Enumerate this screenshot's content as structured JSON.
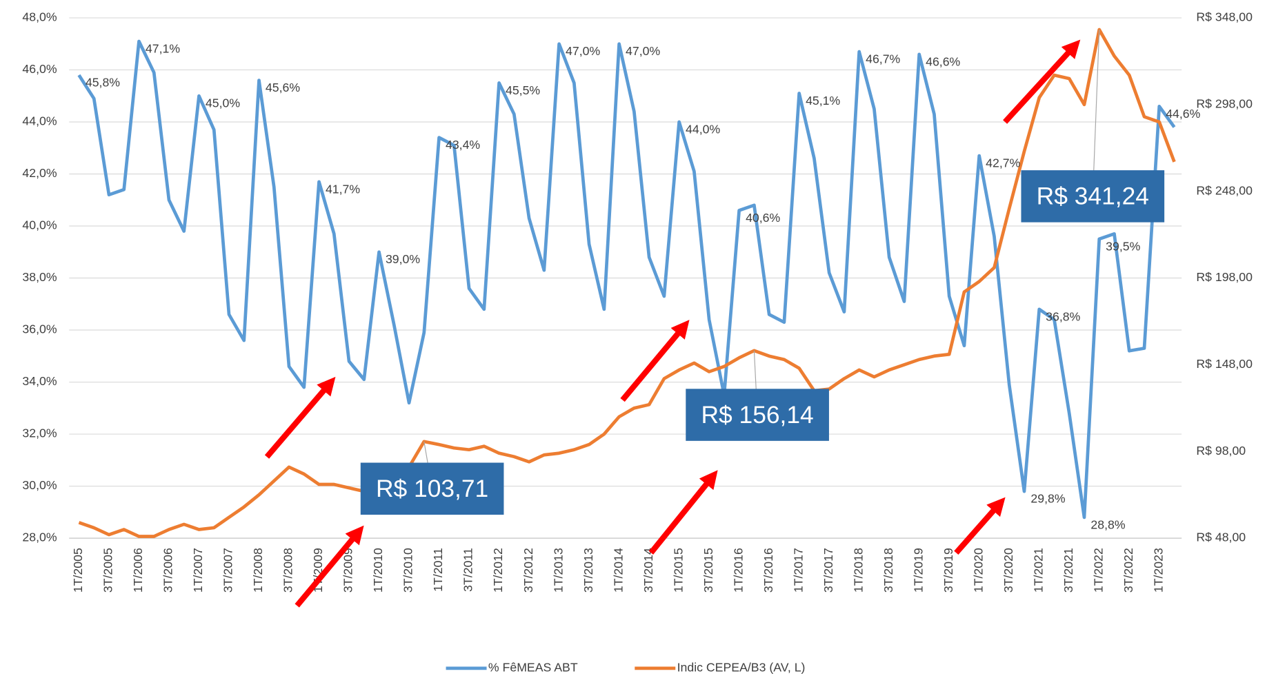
{
  "chart_data": {
    "type": "line",
    "categories": [
      "1T/2005",
      null,
      "3T/2005",
      null,
      "1T/2006",
      null,
      "3T/2006",
      null,
      "1T/2007",
      null,
      "3T/2007",
      null,
      "1T/2008",
      null,
      "3T/2008",
      null,
      "1T/2009",
      null,
      "3T/2009",
      null,
      "1T/2010",
      null,
      "3T/2010",
      null,
      "1T/2011",
      null,
      "3T/2011",
      null,
      "1T/2012",
      null,
      "3T/2012",
      null,
      "1T/2013",
      null,
      "3T/2013",
      null,
      "1T/2014",
      null,
      "3T/2014",
      null,
      "1T/2015",
      null,
      "3T/2015",
      null,
      "1T/2016",
      null,
      "3T/2016",
      null,
      "1T/2017",
      null,
      "3T/2017",
      null,
      "1T/2018",
      null,
      "3T/2018",
      null,
      "1T/2019",
      null,
      "3T/2019",
      null,
      "1T/2020",
      null,
      "3T/2020",
      null,
      "1T/2021",
      null,
      "3T/2021",
      null,
      "1T/2022",
      null,
      "3T/2022",
      null,
      "1T/2023",
      null
    ],
    "series": [
      {
        "name": "% FêMEAS ABT",
        "color": "#5b9bd5",
        "axis": "y",
        "values": [
          45.8,
          44.9,
          41.2,
          41.4,
          47.1,
          45.9,
          41.0,
          39.8,
          45.0,
          43.7,
          36.6,
          35.6,
          45.6,
          41.5,
          34.6,
          33.8,
          41.7,
          39.7,
          34.8,
          34.1,
          39.0,
          36.2,
          33.2,
          35.9,
          43.4,
          43.1,
          37.6,
          36.8,
          45.5,
          44.3,
          40.3,
          38.3,
          47.0,
          45.5,
          39.3,
          36.8,
          47.0,
          44.4,
          38.8,
          37.3,
          44.0,
          42.1,
          36.4,
          33.5,
          40.6,
          40.8,
          36.6,
          36.3,
          45.1,
          42.6,
          38.2,
          36.7,
          46.7,
          44.5,
          38.8,
          37.1,
          46.6,
          44.3,
          37.3,
          35.4,
          42.7,
          39.6,
          33.9,
          29.8,
          36.8,
          36.4,
          32.8,
          28.8,
          39.5,
          39.7,
          35.2,
          35.3,
          44.6,
          43.8
        ],
        "value_labels": [
          "45,8%",
          null,
          null,
          null,
          "47,1%",
          null,
          null,
          null,
          "45,0%",
          null,
          null,
          null,
          "45,6%",
          null,
          null,
          null,
          "41,7%",
          null,
          null,
          null,
          "39,0%",
          null,
          null,
          null,
          "43,4%",
          null,
          null,
          null,
          "45,5%",
          null,
          null,
          null,
          "47,0%",
          null,
          null,
          null,
          "47,0%",
          null,
          null,
          null,
          "44,0%",
          null,
          null,
          null,
          "40,6%",
          null,
          null,
          null,
          "45,1%",
          null,
          null,
          null,
          "46,7%",
          null,
          null,
          null,
          "46,6%",
          null,
          null,
          null,
          "42,7%",
          null,
          null,
          "29,8%",
          "36,8%",
          null,
          null,
          "28,8%",
          "39,5%",
          null,
          null,
          null,
          "44,6%",
          null
        ]
      },
      {
        "name": "Indic CEPEA/B3 (AV, L)",
        "color": "#ed7d31",
        "axis": "y2",
        "values": [
          57,
          54,
          50,
          53,
          49,
          49,
          53,
          56,
          53,
          54,
          60,
          66,
          73,
          81,
          89,
          85,
          79,
          79,
          77,
          75,
          73,
          80,
          89,
          103.71,
          102,
          100,
          99,
          101,
          97,
          95,
          92,
          96,
          97,
          99,
          102,
          108,
          118,
          123,
          125,
          140,
          145,
          149,
          144,
          147,
          152,
          156.14,
          153,
          151,
          146,
          133,
          134,
          140,
          145,
          141,
          145,
          148,
          151,
          153,
          154,
          190,
          196,
          204,
          238,
          271,
          302,
          315,
          313,
          298,
          341.24,
          326,
          315,
          291,
          288,
          265
        ],
        "value_labels": [
          null,
          null,
          null,
          null,
          null,
          null,
          null,
          null,
          null,
          null,
          null,
          null,
          null,
          null,
          null,
          null,
          null,
          null,
          null,
          null,
          null,
          null,
          null,
          "R$ 103,71",
          null,
          null,
          null,
          null,
          null,
          null,
          null,
          null,
          null,
          null,
          null,
          null,
          null,
          null,
          null,
          null,
          null,
          null,
          null,
          null,
          null,
          "R$ 156,14",
          null,
          null,
          null,
          null,
          null,
          null,
          null,
          null,
          null,
          null,
          null,
          null,
          null,
          null,
          null,
          null,
          null,
          null,
          null,
          null,
          null,
          null,
          "R$ 341,24",
          null,
          null,
          null,
          null,
          null
        ]
      }
    ],
    "ylim": [
      28,
      48
    ],
    "yticks": [
      {
        "value": 28,
        "label": "28,0%"
      },
      {
        "value": 30,
        "label": "30,0%"
      },
      {
        "value": 32,
        "label": "32,0%"
      },
      {
        "value": 34,
        "label": "34,0%"
      },
      {
        "value": 36,
        "label": "36,0%"
      },
      {
        "value": 38,
        "label": "38,0%"
      },
      {
        "value": 40,
        "label": "40,0%"
      },
      {
        "value": 42,
        "label": "42,0%"
      },
      {
        "value": 44,
        "label": "44,0%"
      },
      {
        "value": 46,
        "label": "46,0%"
      },
      {
        "value": 48,
        "label": "48,0%"
      }
    ],
    "y2lim": [
      48,
      348
    ],
    "y2ticks": [
      {
        "value": 48,
        "label": "R$ 48,00"
      },
      {
        "value": 98,
        "label": "R$ 98,00"
      },
      {
        "value": 148,
        "label": "R$ 148,00"
      },
      {
        "value": 198,
        "label": "R$ 198,00"
      },
      {
        "value": 248,
        "label": "R$ 248,00"
      },
      {
        "value": 298,
        "label": "R$ 298,00"
      },
      {
        "value": 348,
        "label": "R$ 348,00"
      }
    ],
    "grid": true,
    "legend": "bottom"
  }
}
